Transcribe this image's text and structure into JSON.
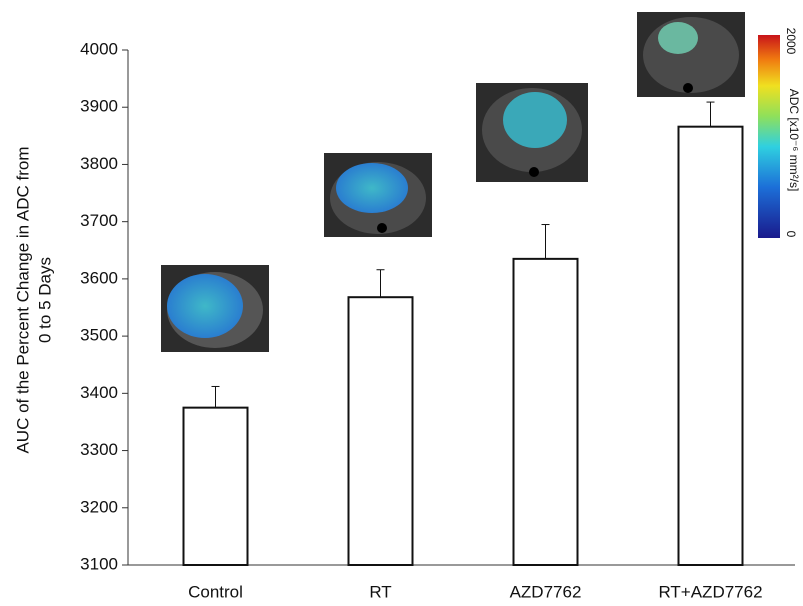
{
  "chart_data": {
    "type": "bar",
    "ylabel": [
      "AUC of the Percent Change in ADC from",
      "0 to 5 Days"
    ],
    "categories": [
      "Control",
      "RT",
      "AZD7762",
      "RT+AZD7762"
    ],
    "values": [
      3375,
      3568,
      3635,
      3866
    ],
    "errors": [
      37,
      48,
      60,
      43
    ],
    "color": "#ffffff",
    "ylim": [
      3100,
      4000
    ],
    "yticks": [
      3100,
      3200,
      3300,
      3400,
      3500,
      3600,
      3700,
      3800,
      3900,
      4000
    ],
    "colorbar": {
      "label": "ADC [x10⁻⁶ mm²/s]",
      "ticks": [
        0,
        2000
      ]
    }
  }
}
